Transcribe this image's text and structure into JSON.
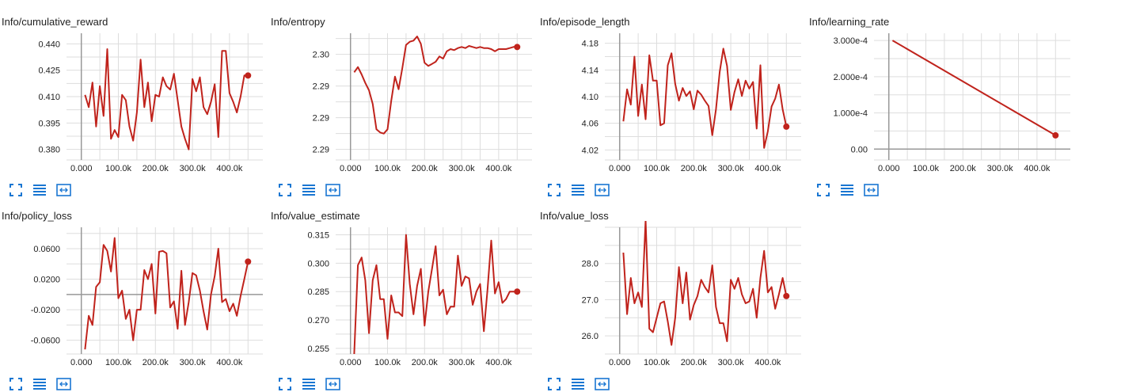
{
  "colors": {
    "line": "#c0231c",
    "grid": "#dddddd",
    "zero_axis": "#999999",
    "tick_text": "#212121",
    "icon": "#1976d2"
  },
  "toolbar": {
    "icons": [
      "expand-icon",
      "list-icon",
      "fit-domain-icon"
    ]
  },
  "chart_data": [
    {
      "id": "cumulative_reward",
      "type": "line",
      "title": "Info/cumulative_reward",
      "xlim": [
        -40000,
        490000
      ],
      "ylim": [
        0.374,
        0.446
      ],
      "xticks": [
        0,
        100000,
        200000,
        300000,
        400000
      ],
      "xtick_labels": [
        "0.000",
        "100.0k",
        "200.0k",
        "300.0k",
        "400.0k"
      ],
      "yticks": [
        0.38,
        0.395,
        0.41,
        0.425,
        0.44
      ],
      "ytick_labels": [
        "0.380",
        "0.395",
        "0.410",
        "0.425",
        "0.440"
      ],
      "grid": true,
      "series": [
        {
          "x": [
            10000,
            20000,
            30000,
            40000,
            50000,
            60000,
            70000,
            80000,
            90000,
            100000,
            110000,
            120000,
            130000,
            140000,
            150000,
            160000,
            170000,
            180000,
            190000,
            200000,
            210000,
            220000,
            230000,
            240000,
            250000,
            260000,
            270000,
            280000,
            290000,
            300000,
            310000,
            320000,
            330000,
            340000,
            350000,
            360000,
            370000,
            380000,
            390000,
            400000,
            410000,
            420000,
            430000,
            440000,
            450000
          ],
          "y": [
            0.411,
            0.404,
            0.418,
            0.393,
            0.416,
            0.399,
            0.437,
            0.386,
            0.391,
            0.387,
            0.411,
            0.408,
            0.393,
            0.385,
            0.401,
            0.431,
            0.404,
            0.418,
            0.396,
            0.411,
            0.41,
            0.421,
            0.416,
            0.414,
            0.423,
            0.408,
            0.393,
            0.386,
            0.38,
            0.42,
            0.413,
            0.421,
            0.404,
            0.4,
            0.407,
            0.417,
            0.387,
            0.436,
            0.436,
            0.412,
            0.407,
            0.401,
            0.41,
            0.422,
            0.422
          ]
        }
      ]
    },
    {
      "id": "entropy",
      "type": "line",
      "title": "Info/entropy",
      "xlim": [
        -40000,
        490000
      ],
      "ylim": [
        2.2895,
        2.3015
      ],
      "xticks": [
        0,
        100000,
        200000,
        300000,
        400000
      ],
      "xtick_labels": [
        "0.000",
        "100.0k",
        "200.0k",
        "300.0k",
        "400.0k"
      ],
      "yticks": [
        2.2905,
        2.2935,
        2.2965,
        2.2995
      ],
      "ytick_labels": [
        "2.29",
        "2.29",
        "2.29",
        "2.30"
      ],
      "grid": true,
      "series": [
        {
          "x": [
            10000,
            20000,
            30000,
            40000,
            50000,
            60000,
            70000,
            80000,
            90000,
            100000,
            110000,
            120000,
            130000,
            140000,
            150000,
            160000,
            170000,
            180000,
            190000,
            200000,
            210000,
            220000,
            230000,
            240000,
            250000,
            260000,
            270000,
            280000,
            290000,
            300000,
            310000,
            320000,
            330000,
            340000,
            350000,
            360000,
            370000,
            380000,
            390000,
            400000,
            410000,
            420000,
            430000,
            440000,
            450000
          ],
          "y": [
            2.2978,
            2.2983,
            2.2976,
            2.2968,
            2.2961,
            2.2948,
            2.2924,
            2.2921,
            2.292,
            2.2924,
            2.2951,
            2.2974,
            2.2962,
            2.2982,
            2.3004,
            2.3007,
            2.3008,
            2.3012,
            2.3005,
            2.2987,
            2.2984,
            2.2986,
            2.2988,
            2.2993,
            2.2991,
            2.2998,
            2.3,
            2.2999,
            2.3001,
            2.3002,
            2.3001,
            2.3003,
            2.3002,
            2.3001,
            2.3002,
            2.3001,
            2.3001,
            2.3,
            2.2998,
            2.3,
            2.3,
            2.3,
            2.3001,
            2.3002,
            2.3002
          ]
        }
      ]
    },
    {
      "id": "episode_length",
      "type": "line",
      "title": "Info/episode_length",
      "xlim": [
        -40000,
        490000
      ],
      "ylim": [
        4.005,
        4.195
      ],
      "xticks": [
        0,
        100000,
        200000,
        300000,
        400000
      ],
      "xtick_labels": [
        "0.000",
        "100.0k",
        "200.0k",
        "300.0k",
        "400.0k"
      ],
      "yticks": [
        4.02,
        4.06,
        4.1,
        4.14,
        4.18
      ],
      "ytick_labels": [
        "4.02",
        "4.06",
        "4.10",
        "4.14",
        "4.18"
      ],
      "grid": true,
      "series": [
        {
          "x": [
            10000,
            20000,
            30000,
            40000,
            50000,
            60000,
            70000,
            80000,
            90000,
            100000,
            110000,
            120000,
            130000,
            140000,
            150000,
            160000,
            170000,
            180000,
            190000,
            200000,
            210000,
            220000,
            230000,
            240000,
            250000,
            260000,
            270000,
            280000,
            290000,
            300000,
            310000,
            320000,
            330000,
            340000,
            350000,
            360000,
            370000,
            380000,
            390000,
            400000,
            410000,
            420000,
            430000,
            440000,
            450000
          ],
          "y": [
            4.063,
            4.111,
            4.088,
            4.16,
            4.071,
            4.118,
            4.066,
            4.162,
            4.124,
            4.124,
            4.057,
            4.06,
            4.147,
            4.165,
            4.119,
            4.094,
            4.113,
            4.101,
            4.108,
            4.081,
            4.109,
            4.103,
            4.094,
            4.086,
            4.042,
            4.081,
            4.137,
            4.172,
            4.146,
            4.08,
            4.107,
            4.126,
            4.101,
            4.124,
            4.112,
            4.122,
            4.052,
            4.147,
            4.023,
            4.048,
            4.085,
            4.097,
            4.118,
            4.081,
            4.055
          ]
        }
      ]
    },
    {
      "id": "learning_rate",
      "type": "line",
      "title": "Info/learning_rate",
      "xlim": [
        -40000,
        490000
      ],
      "ylim": [
        -3e-05,
        0.00032
      ],
      "xticks": [
        0,
        100000,
        200000,
        300000,
        400000
      ],
      "xtick_labels": [
        "0.000",
        "100.0k",
        "200.0k",
        "300.0k",
        "400.0k"
      ],
      "yticks": [
        0,
        0.0001,
        0.0002,
        0.0003
      ],
      "ytick_labels": [
        "0.00",
        "1.000e-4",
        "2.000e-4",
        "3.000e-4"
      ],
      "grid": true,
      "series": [
        {
          "x": [
            10000,
            450000
          ],
          "y": [
            0.0003,
            3.8e-05
          ]
        }
      ]
    },
    {
      "id": "policy_loss",
      "type": "line",
      "title": "Info/policy_loss",
      "xlim": [
        -40000,
        490000
      ],
      "ylim": [
        -0.078,
        0.088
      ],
      "xticks": [
        0,
        100000,
        200000,
        300000,
        400000
      ],
      "xtick_labels": [
        "0.000",
        "100.0k",
        "200.0k",
        "300.0k",
        "400.0k"
      ],
      "yticks": [
        -0.06,
        -0.02,
        0.02,
        0.06
      ],
      "ytick_labels": [
        "-0.0600",
        "-0.0200",
        "0.0200",
        "0.0600"
      ],
      "grid": true,
      "series": [
        {
          "x": [
            10000,
            20000,
            30000,
            40000,
            50000,
            60000,
            70000,
            80000,
            90000,
            100000,
            110000,
            120000,
            130000,
            140000,
            150000,
            160000,
            170000,
            180000,
            190000,
            200000,
            210000,
            220000,
            230000,
            240000,
            250000,
            260000,
            270000,
            280000,
            290000,
            300000,
            310000,
            320000,
            330000,
            340000,
            350000,
            360000,
            370000,
            380000,
            390000,
            400000,
            410000,
            420000,
            430000,
            440000,
            450000
          ],
          "y": [
            -0.072,
            -0.028,
            -0.04,
            0.01,
            0.016,
            0.065,
            0.057,
            0.03,
            0.074,
            -0.005,
            0.005,
            -0.032,
            -0.02,
            -0.06,
            -0.02,
            -0.02,
            0.032,
            0.02,
            0.04,
            -0.025,
            0.056,
            0.057,
            0.054,
            -0.017,
            -0.009,
            -0.045,
            0.031,
            -0.04,
            -0.01,
            0.028,
            0.025,
            0.005,
            -0.022,
            -0.046,
            0.0,
            0.024,
            0.06,
            -0.01,
            -0.006,
            -0.022,
            -0.012,
            -0.028,
            -0.002,
            0.02,
            0.043
          ]
        }
      ]
    },
    {
      "id": "value_estimate",
      "type": "line",
      "title": "Info/value_estimate",
      "xlim": [
        -40000,
        490000
      ],
      "ylim": [
        0.252,
        0.319
      ],
      "xticks": [
        0,
        100000,
        200000,
        300000,
        400000
      ],
      "xtick_labels": [
        "0.000",
        "100.0k",
        "200.0k",
        "300.0k",
        "400.0k"
      ],
      "yticks": [
        0.255,
        0.27,
        0.285,
        0.3,
        0.315
      ],
      "ytick_labels": [
        "0.255",
        "0.270",
        "0.285",
        "0.300",
        "0.315"
      ],
      "grid": true,
      "series": [
        {
          "x": [
            10000,
            20000,
            30000,
            40000,
            50000,
            60000,
            70000,
            80000,
            90000,
            100000,
            110000,
            120000,
            130000,
            140000,
            150000,
            160000,
            170000,
            180000,
            190000,
            200000,
            210000,
            220000,
            230000,
            240000,
            250000,
            260000,
            270000,
            280000,
            290000,
            300000,
            310000,
            320000,
            330000,
            340000,
            350000,
            360000,
            370000,
            380000,
            390000,
            400000,
            410000,
            420000,
            430000,
            440000,
            450000
          ],
          "y": [
            0.252,
            0.299,
            0.303,
            0.291,
            0.263,
            0.291,
            0.299,
            0.281,
            0.281,
            0.26,
            0.283,
            0.274,
            0.274,
            0.272,
            0.315,
            0.289,
            0.273,
            0.288,
            0.297,
            0.267,
            0.285,
            0.297,
            0.309,
            0.283,
            0.286,
            0.273,
            0.277,
            0.277,
            0.304,
            0.288,
            0.293,
            0.292,
            0.278,
            0.285,
            0.289,
            0.264,
            0.286,
            0.312,
            0.284,
            0.29,
            0.279,
            0.281,
            0.285,
            0.285,
            0.285
          ]
        }
      ]
    },
    {
      "id": "value_loss",
      "type": "line",
      "title": "Info/value_loss",
      "xlim": [
        -40000,
        490000
      ],
      "ylim": [
        25.5,
        29.0
      ],
      "xticks": [
        0,
        100000,
        200000,
        300000,
        400000
      ],
      "xtick_labels": [
        "0.000",
        "100.0k",
        "200.0k",
        "300.0k",
        "400.0k"
      ],
      "yticks": [
        26.0,
        27.0,
        28.0
      ],
      "ytick_labels": [
        "26.0",
        "27.0",
        "28.0"
      ],
      "grid": true,
      "series": [
        {
          "x": [
            10000,
            20000,
            30000,
            40000,
            50000,
            60000,
            70000,
            80000,
            90000,
            100000,
            110000,
            120000,
            130000,
            140000,
            150000,
            160000,
            170000,
            180000,
            190000,
            200000,
            210000,
            220000,
            230000,
            240000,
            250000,
            260000,
            270000,
            280000,
            290000,
            300000,
            310000,
            320000,
            330000,
            340000,
            350000,
            360000,
            370000,
            380000,
            390000,
            400000,
            410000,
            420000,
            430000,
            440000,
            450000
          ],
          "y": [
            28.3,
            26.6,
            27.6,
            26.9,
            27.2,
            26.8,
            29.2,
            26.2,
            26.1,
            26.5,
            26.9,
            26.95,
            26.4,
            25.75,
            26.5,
            27.9,
            26.9,
            27.75,
            26.45,
            26.85,
            27.1,
            27.55,
            27.35,
            27.2,
            27.95,
            26.8,
            26.35,
            26.35,
            25.85,
            27.55,
            27.3,
            27.6,
            27.15,
            26.9,
            26.95,
            27.3,
            26.5,
            27.6,
            28.35,
            27.2,
            27.35,
            26.75,
            27.15,
            27.6,
            27.1
          ]
        }
      ]
    }
  ]
}
